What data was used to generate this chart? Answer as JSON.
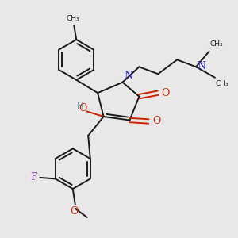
{
  "background_color": "#e8e8e8",
  "bond_color": "#1a1a1a",
  "nitrogen_color": "#2222cc",
  "oxygen_color": "#cc2200",
  "fluorine_color": "#8844aa",
  "hydrogen_color": "#44aaaa",
  "figsize": [
    3.0,
    3.0
  ],
  "dpi": 100,
  "xlim": [
    0,
    10
  ],
  "ylim": [
    0,
    10
  ]
}
